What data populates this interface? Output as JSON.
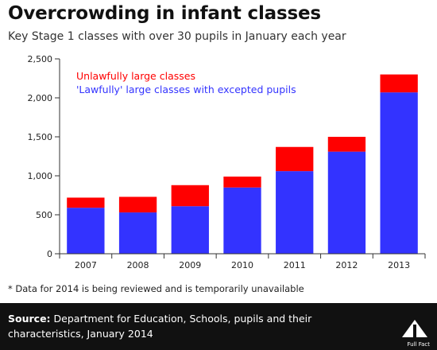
{
  "header": {
    "title": "Overcrowding in infant classes",
    "subtitle": "Key Stage 1 classes with over 30 pupils in January each year"
  },
  "note": "* Data for 2014 is being reviewed and is temporarily unavailable",
  "footer": {
    "source_label": "Source:",
    "source_text": "Department for Education, Schools, pupils and their characteristics, January 2014",
    "logo_text": "Full Fact"
  },
  "colors": {
    "unlawful": "#ff0000",
    "lawful": "#3333ff",
    "footer_bg": "#111111"
  },
  "chart_data": {
    "type": "bar",
    "stacked": true,
    "categories": [
      "2007",
      "2008",
      "2009",
      "2010",
      "2011",
      "2012",
      "2013"
    ],
    "series": [
      {
        "name": "'Lawfully' large classes with excepted pupils",
        "color": "#3333ff",
        "values": [
          590,
          530,
          610,
          850,
          1060,
          1310,
          2070
        ]
      },
      {
        "name": "Unlawfully large classes",
        "color": "#ff0000",
        "values": [
          130,
          200,
          270,
          140,
          310,
          190,
          230
        ]
      }
    ],
    "ylim": [
      0,
      2500
    ],
    "yticks": [
      0,
      500,
      1000,
      1500,
      2000,
      2500
    ],
    "ytick_labels": [
      "0",
      "500",
      "1,000",
      "1,500",
      "2,000",
      "2,500"
    ],
    "legend_order": [
      "Unlawfully large classes",
      "'Lawfully' large classes with excepted pupils"
    ],
    "legend_position": "top-left",
    "grid": false
  }
}
